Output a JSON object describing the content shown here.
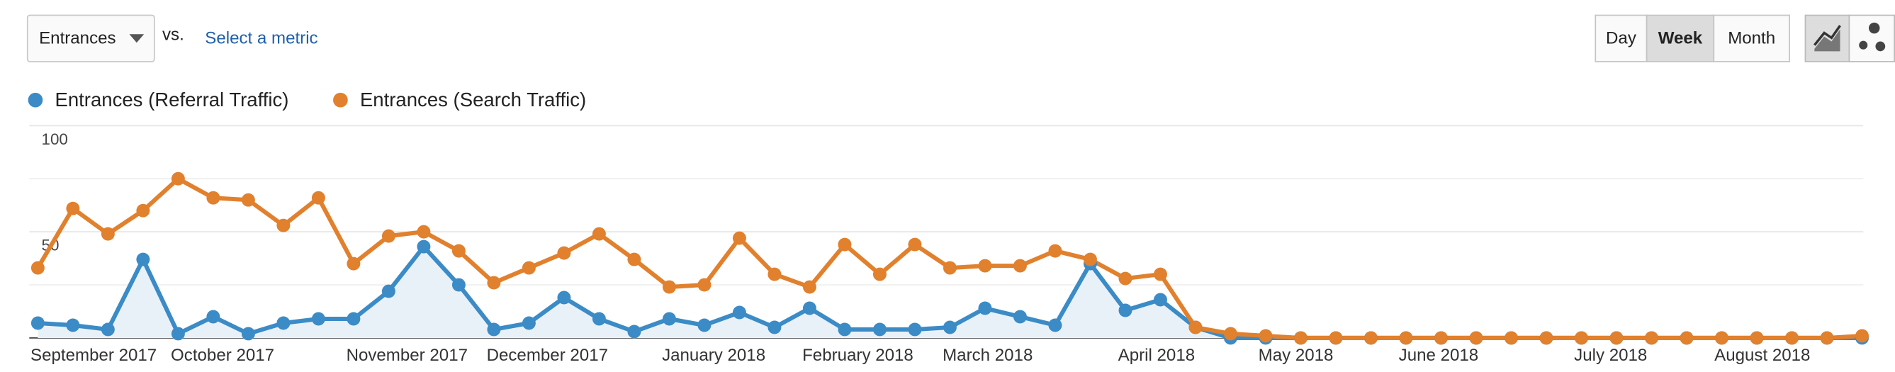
{
  "controls": {
    "metric": "Entrances",
    "vs": "vs.",
    "select_metric": "Select a metric",
    "periods": [
      "Day",
      "Week",
      "Month"
    ],
    "selected_period": "Week"
  },
  "chart_data": {
    "type": "line",
    "categories": [
      "September 2017",
      null,
      null,
      null,
      "October 2017",
      null,
      null,
      null,
      null,
      "November 2017",
      null,
      null,
      null,
      "December 2017",
      null,
      null,
      null,
      null,
      "January 2018",
      null,
      null,
      null,
      "February 2018",
      null,
      null,
      null,
      "March 2018",
      null,
      null,
      null,
      null,
      "April 2018",
      null,
      null,
      null,
      "May 2018",
      null,
      null,
      null,
      "June 2018",
      null,
      null,
      null,
      null,
      "July 2018",
      null,
      null,
      null,
      "August 2018",
      null,
      null,
      null,
      null
    ],
    "series": [
      {
        "name": "Entrances (Referral Traffic)",
        "color": "#3b8bc6",
        "fill": "#e9f1f8",
        "values": [
          7,
          6,
          4,
          37,
          2,
          10,
          2,
          7,
          9,
          9,
          22,
          43,
          25,
          4,
          7,
          19,
          9,
          3,
          9,
          6,
          12,
          5,
          14,
          4,
          4,
          4,
          5,
          14,
          10,
          6,
          35,
          13,
          18,
          5,
          0,
          0,
          0,
          0,
          0,
          0,
          0,
          0,
          0,
          0,
          0,
          0,
          0,
          0,
          0,
          0,
          0,
          0,
          0
        ]
      },
      {
        "name": "Entrances (Search Traffic)",
        "color": "#e1802d",
        "values": [
          33,
          61,
          49,
          60,
          75,
          66,
          65,
          53,
          66,
          35,
          48,
          50,
          41,
          26,
          33,
          40,
          49,
          37,
          24,
          25,
          47,
          30,
          24,
          44,
          30,
          44,
          33,
          34,
          34,
          41,
          37,
          28,
          30,
          5,
          2,
          1,
          0,
          0,
          0,
          0,
          0,
          0,
          0,
          0,
          0,
          0,
          0,
          0,
          0,
          0,
          0,
          0,
          1
        ]
      }
    ],
    "ylim": [
      0,
      100
    ],
    "yticks": [
      50,
      100
    ],
    "minor_gridlines": [
      25,
      75
    ]
  }
}
